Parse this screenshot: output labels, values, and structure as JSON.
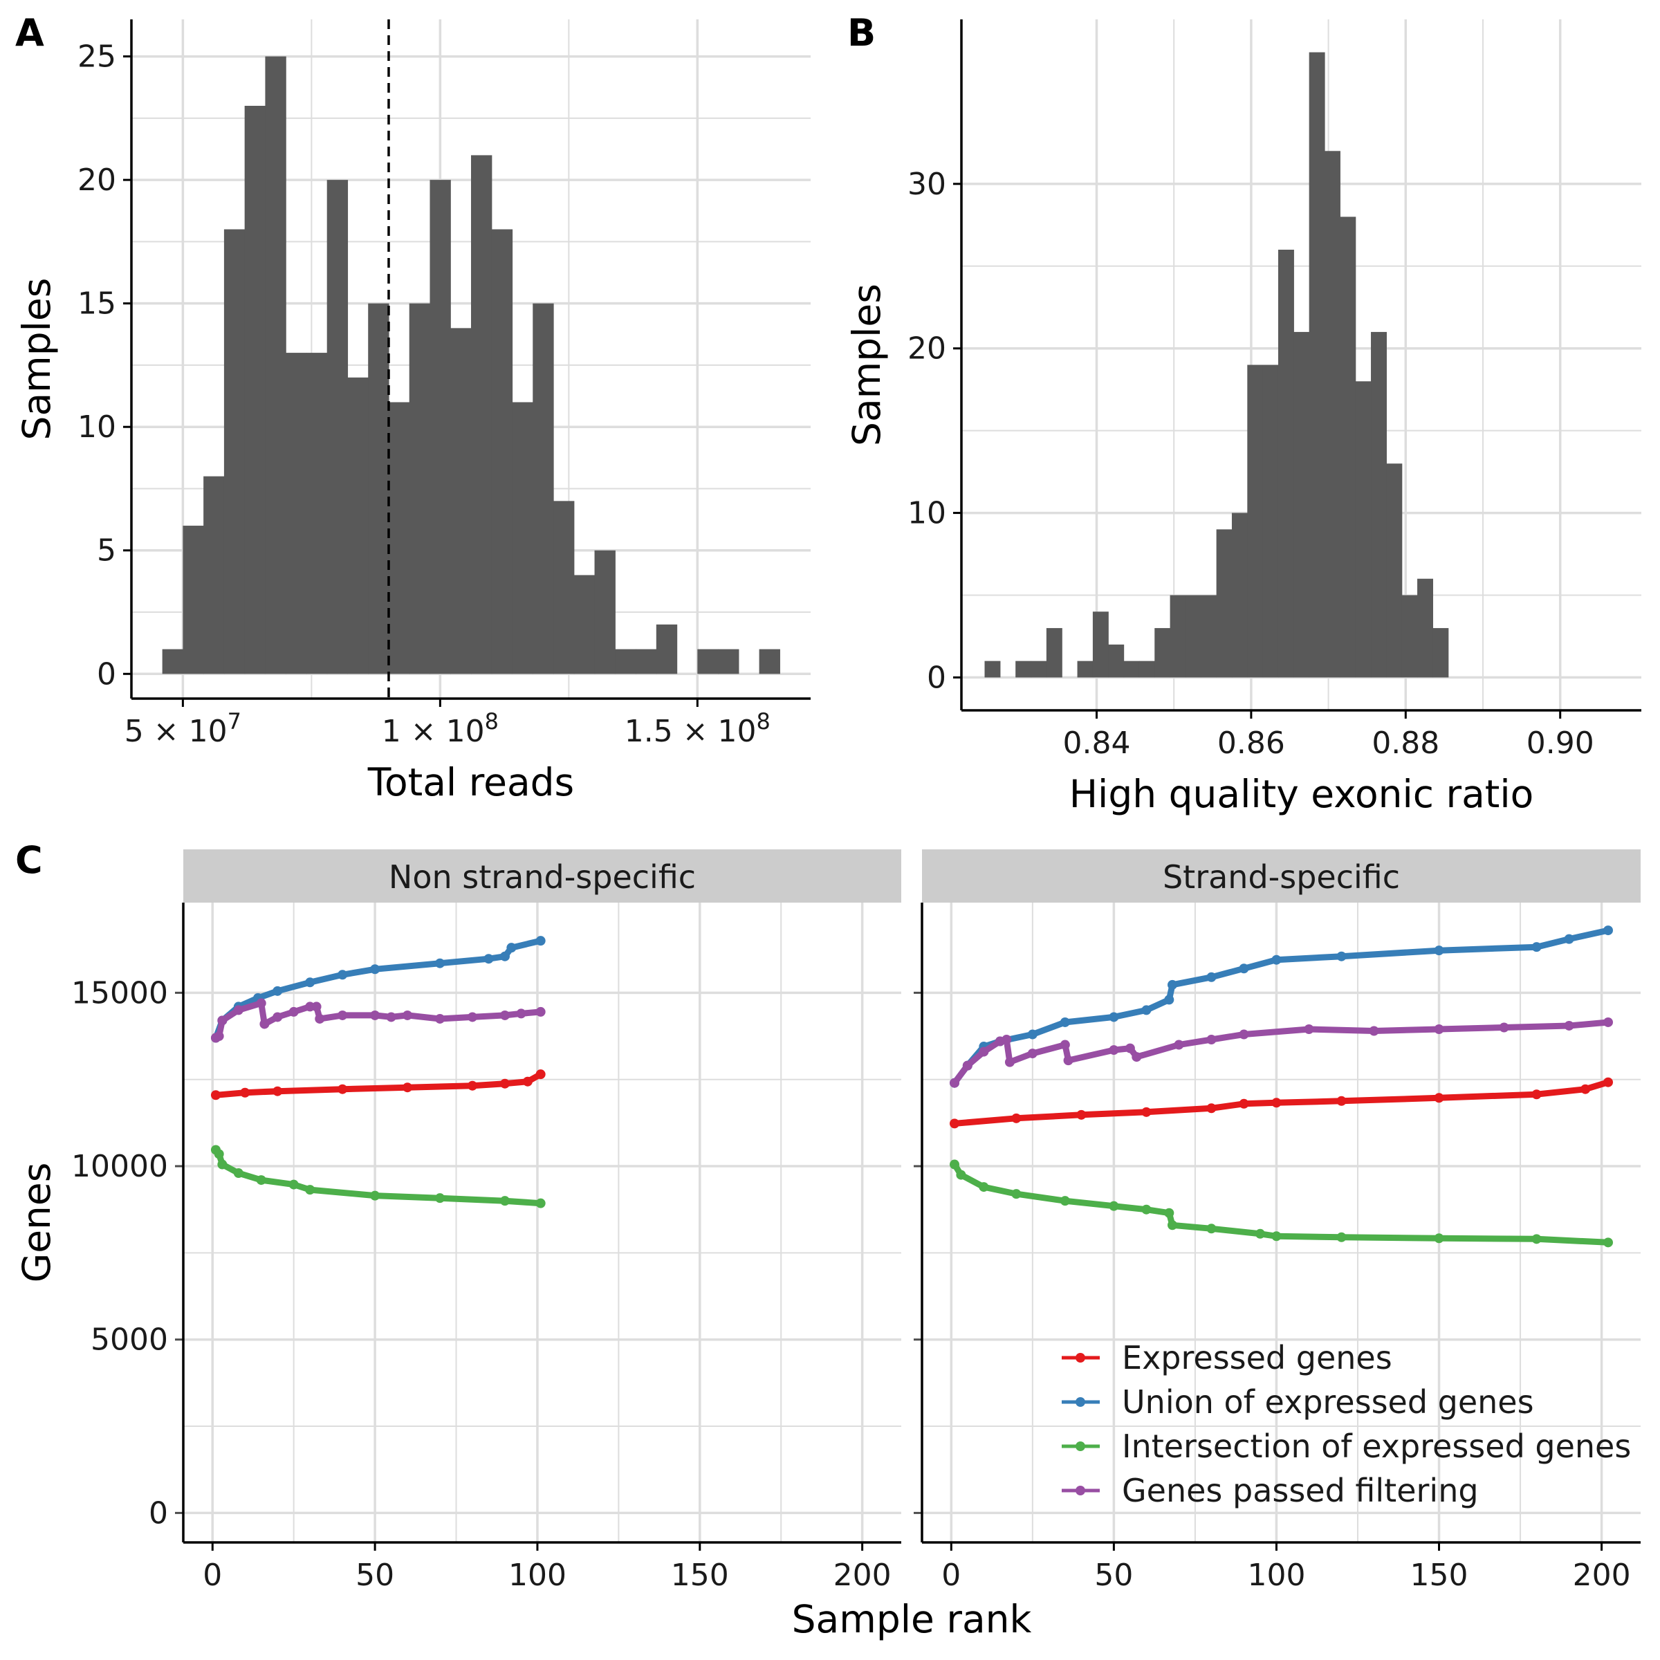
{
  "panels": {
    "a": {
      "tag": "A"
    },
    "b": {
      "tag": "B"
    },
    "c": {
      "tag": "C"
    }
  },
  "colors": {
    "bar": "#595959",
    "grid": "#dddddd",
    "axis": "#000000",
    "strip_bg": "#cccccc",
    "vline": "#000000"
  },
  "chart_data": [
    {
      "type": "bar",
      "subtype": "histogram",
      "panel": "A",
      "xlabel": "Total reads",
      "ylabel": "Samples",
      "xlim": [
        40000000,
        172000000
      ],
      "ylim": [
        -1,
        26.5
      ],
      "x_ticks": [
        50000000,
        100000000,
        150000000
      ],
      "x_tick_labels": [
        "5 × 10^7",
        "1 × 10^8",
        "1.5 × 10^8"
      ],
      "y_ticks": [
        0,
        5,
        10,
        15,
        20,
        25
      ],
      "y_tick_labels": [
        "0",
        "5",
        "10",
        "15",
        "20",
        "25"
      ],
      "grid": true,
      "bin_start": 46000000,
      "bin_width": 4000000,
      "counts": [
        1,
        6,
        8,
        18,
        23,
        25,
        13,
        13,
        20,
        12,
        15,
        11,
        15,
        20,
        14,
        21,
        18,
        11,
        15,
        7,
        4,
        5,
        1,
        1,
        2,
        0,
        1,
        1,
        0,
        1
      ],
      "median_line": 90000000
    },
    {
      "type": "bar",
      "subtype": "histogram",
      "panel": "B",
      "xlabel": "High quality exonic ratio",
      "ylabel": "Samples",
      "xlim": [
        0.8225,
        0.9105
      ],
      "ylim": [
        -2,
        40
      ],
      "x_ticks": [
        0.84,
        0.86,
        0.88,
        0.9
      ],
      "x_tick_labels": [
        "0.84",
        "0.86",
        "0.88",
        "0.90"
      ],
      "y_ticks": [
        0,
        10,
        20,
        30
      ],
      "y_tick_labels": [
        "0",
        "10",
        "20",
        "30"
      ],
      "grid": true,
      "bin_start": 0.8255,
      "bin_width": 0.002,
      "counts": [
        1,
        0,
        1,
        1,
        3,
        0,
        1,
        4,
        2,
        1,
        1,
        3,
        5,
        5,
        5,
        9,
        10,
        19,
        19,
        26,
        21,
        38,
        32,
        28,
        18,
        21,
        13,
        5,
        6,
        3
      ]
    },
    {
      "type": "line",
      "panel": "C",
      "xlabel": "Sample rank",
      "ylabel": "Genes",
      "facets": [
        "Non strand-specific",
        "Strand-specific"
      ],
      "xlim": [
        -9,
        212
      ],
      "ylim": [
        -850,
        17600
      ],
      "x_ticks": [
        0,
        50,
        100,
        150,
        200
      ],
      "x_tick_labels": [
        "0",
        "50",
        "100",
        "150",
        "200"
      ],
      "y_ticks": [
        0,
        5000,
        10000,
        15000
      ],
      "y_tick_labels": [
        "0",
        "5000",
        "10000",
        "15000"
      ],
      "grid": true,
      "legend_position": "bottom-right of Strand-specific facet",
      "series": [
        {
          "name": "Expressed genes",
          "color": "#e41a1c",
          "facet_values": [
            [
              [
                1,
                12050
              ],
              [
                10,
                12120
              ],
              [
                20,
                12160
              ],
              [
                40,
                12220
              ],
              [
                60,
                12270
              ],
              [
                80,
                12320
              ],
              [
                90,
                12380
              ],
              [
                97,
                12440
              ],
              [
                101,
                12650
              ]
            ],
            [
              [
                1,
                11230
              ],
              [
                20,
                11380
              ],
              [
                40,
                11480
              ],
              [
                60,
                11560
              ],
              [
                80,
                11670
              ],
              [
                90,
                11800
              ],
              [
                100,
                11830
              ],
              [
                120,
                11880
              ],
              [
                150,
                11970
              ],
              [
                180,
                12070
              ],
              [
                195,
                12220
              ],
              [
                202,
                12420
              ]
            ]
          ]
        },
        {
          "name": "Union of expressed genes",
          "color": "#377eb8",
          "facet_values": [
            [
              [
                1,
                13700
              ],
              [
                3,
                14200
              ],
              [
                8,
                14600
              ],
              [
                14,
                14850
              ],
              [
                20,
                15050
              ],
              [
                30,
                15300
              ],
              [
                40,
                15520
              ],
              [
                50,
                15680
              ],
              [
                70,
                15850
              ],
              [
                85,
                15980
              ],
              [
                90,
                16050
              ],
              [
                92,
                16300
              ],
              [
                101,
                16500
              ]
            ],
            [
              [
                1,
                12400
              ],
              [
                5,
                12900
              ],
              [
                10,
                13450
              ],
              [
                15,
                13600
              ],
              [
                25,
                13800
              ],
              [
                35,
                14150
              ],
              [
                50,
                14300
              ],
              [
                60,
                14500
              ],
              [
                67,
                14800
              ],
              [
                68,
                15230
              ],
              [
                80,
                15450
              ],
              [
                90,
                15700
              ],
              [
                100,
                15950
              ],
              [
                120,
                16050
              ],
              [
                150,
                16220
              ],
              [
                180,
                16320
              ],
              [
                190,
                16550
              ],
              [
                202,
                16800
              ]
            ]
          ]
        },
        {
          "name": "Intersection of expressed genes",
          "color": "#4daf4a",
          "facet_values": [
            [
              [
                1,
                10470
              ],
              [
                2,
                10350
              ],
              [
                3,
                10050
              ],
              [
                8,
                9800
              ],
              [
                15,
                9600
              ],
              [
                25,
                9470
              ],
              [
                30,
                9320
              ],
              [
                50,
                9150
              ],
              [
                70,
                9080
              ],
              [
                90,
                9000
              ],
              [
                101,
                8930
              ]
            ],
            [
              [
                1,
                10050
              ],
              [
                3,
                9750
              ],
              [
                10,
                9400
              ],
              [
                20,
                9200
              ],
              [
                35,
                9000
              ],
              [
                50,
                8850
              ],
              [
                60,
                8750
              ],
              [
                67,
                8650
              ],
              [
                68,
                8300
              ],
              [
                80,
                8200
              ],
              [
                95,
                8050
              ],
              [
                100,
                7980
              ],
              [
                120,
                7950
              ],
              [
                150,
                7920
              ],
              [
                180,
                7900
              ],
              [
                202,
                7800
              ]
            ]
          ]
        },
        {
          "name": "Genes passed filtering",
          "color": "#984ea3",
          "facet_values": [
            [
              [
                1,
                13700
              ],
              [
                2,
                13750
              ],
              [
                3,
                14200
              ],
              [
                8,
                14500
              ],
              [
                15,
                14700
              ],
              [
                16,
                14100
              ],
              [
                20,
                14300
              ],
              [
                25,
                14450
              ],
              [
                30,
                14600
              ],
              [
                32,
                14600
              ],
              [
                33,
                14250
              ],
              [
                40,
                14350
              ],
              [
                50,
                14350
              ],
              [
                55,
                14300
              ],
              [
                60,
                14350
              ],
              [
                70,
                14250
              ],
              [
                80,
                14300
              ],
              [
                90,
                14350
              ],
              [
                95,
                14400
              ],
              [
                101,
                14450
              ]
            ],
            [
              [
                1,
                12400
              ],
              [
                5,
                12900
              ],
              [
                10,
                13300
              ],
              [
                15,
                13600
              ],
              [
                17,
                13650
              ],
              [
                18,
                13000
              ],
              [
                25,
                13250
              ],
              [
                35,
                13500
              ],
              [
                36,
                13050
              ],
              [
                50,
                13350
              ],
              [
                55,
                13400
              ],
              [
                57,
                13150
              ],
              [
                70,
                13500
              ],
              [
                80,
                13650
              ],
              [
                90,
                13800
              ],
              [
                110,
                13950
              ],
              [
                130,
                13900
              ],
              [
                150,
                13950
              ],
              [
                170,
                14000
              ],
              [
                190,
                14050
              ],
              [
                202,
                14150
              ]
            ]
          ]
        }
      ]
    }
  ]
}
